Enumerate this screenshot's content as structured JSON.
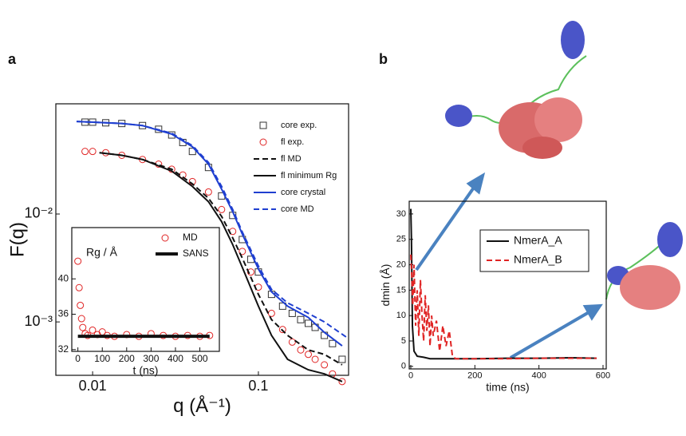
{
  "chart_data": [
    {
      "type": "scatter-line",
      "panel_label": "a",
      "xlabel": "q (Å⁻¹)",
      "ylabel": "F(q)",
      "xscale": "log",
      "yscale": "log",
      "xlim": [
        0.006,
        0.35
      ],
      "ylim": [
        0.00032,
        0.105
      ],
      "xticks": [
        0.01,
        0.1
      ],
      "yticks": [
        {
          "value": 0.01,
          "label": "10⁻²"
        },
        {
          "value": 0.001,
          "label": "10⁻³"
        }
      ],
      "legend": "upper right",
      "series": [
        {
          "name": "core exp.",
          "color": "#333333",
          "marker": "square",
          "dash": false,
          "x": [
            0.009,
            0.01,
            0.012,
            0.015,
            0.02,
            0.025,
            0.03,
            0.035,
            0.04,
            0.05,
            0.06,
            0.07,
            0.08,
            0.09,
            0.1,
            0.12,
            0.14,
            0.16,
            0.18,
            0.2,
            0.22,
            0.25,
            0.28,
            0.32
          ],
          "values": [
            0.071,
            0.071,
            0.07,
            0.069,
            0.066,
            0.061,
            0.054,
            0.046,
            0.038,
            0.027,
            0.0147,
            0.0097,
            0.0058,
            0.0038,
            0.0029,
            0.0018,
            0.0014,
            0.0012,
            0.00105,
            0.00097,
            0.00089,
            0.00075,
            0.00063,
            0.00045
          ]
        },
        {
          "name": "fl exp.",
          "color": "#e02424",
          "marker": "circle",
          "dash": false,
          "x": [
            0.009,
            0.01,
            0.012,
            0.015,
            0.02,
            0.025,
            0.03,
            0.035,
            0.04,
            0.05,
            0.06,
            0.07,
            0.08,
            0.09,
            0.1,
            0.12,
            0.14,
            0.16,
            0.18,
            0.2,
            0.22,
            0.25,
            0.28,
            0.32
          ],
          "values": [
            0.038,
            0.038,
            0.037,
            0.035,
            0.032,
            0.029,
            0.026,
            0.023,
            0.02,
            0.016,
            0.011,
            0.0069,
            0.0045,
            0.0029,
            0.0021,
            0.0012,
            0.00085,
            0.00065,
            0.00055,
            0.0005,
            0.00045,
            0.0004,
            0.00033,
            0.00028
          ]
        },
        {
          "name": "fl MD",
          "color": "#111111",
          "marker": "none",
          "dash": true,
          "x": [
            0.011,
            0.015,
            0.02,
            0.03,
            0.04,
            0.05,
            0.06,
            0.07,
            0.08,
            0.1,
            0.12,
            0.15,
            0.2,
            0.25,
            0.32
          ],
          "values": [
            0.037,
            0.035,
            0.032,
            0.026,
            0.019,
            0.014,
            0.0095,
            0.006,
            0.0039,
            0.0018,
            0.00105,
            0.00075,
            0.00055,
            0.0005,
            0.0004
          ]
        },
        {
          "name": "fl minimum Rg",
          "color": "#111111",
          "marker": "none",
          "dash": false,
          "x": [
            0.011,
            0.015,
            0.02,
            0.03,
            0.04,
            0.05,
            0.06,
            0.07,
            0.08,
            0.1,
            0.12,
            0.15,
            0.2,
            0.25,
            0.32
          ],
          "values": [
            0.037,
            0.035,
            0.032,
            0.025,
            0.018,
            0.013,
            0.0085,
            0.0052,
            0.0032,
            0.0014,
            0.00075,
            0.00045,
            0.00036,
            0.00033,
            0.00028
          ]
        },
        {
          "name": "core crystal",
          "color": "#1f3fd0",
          "marker": "none",
          "dash": false,
          "x": [
            0.008,
            0.01,
            0.015,
            0.02,
            0.03,
            0.04,
            0.05,
            0.06,
            0.07,
            0.08,
            0.1,
            0.12,
            0.15,
            0.2,
            0.25,
            0.32
          ],
          "values": [
            0.072,
            0.071,
            0.069,
            0.066,
            0.055,
            0.042,
            0.029,
            0.017,
            0.0105,
            0.0065,
            0.0031,
            0.0019,
            0.0014,
            0.0011,
            0.0008,
            0.0006
          ]
        },
        {
          "name": "core MD",
          "color": "#1f3fd0",
          "marker": "none",
          "dash": true,
          "x": [
            0.008,
            0.01,
            0.015,
            0.02,
            0.03,
            0.04,
            0.05,
            0.06,
            0.07,
            0.08,
            0.1,
            0.12,
            0.15,
            0.2,
            0.25,
            0.35
          ],
          "values": [
            0.072,
            0.071,
            0.069,
            0.066,
            0.056,
            0.043,
            0.03,
            0.018,
            0.011,
            0.0068,
            0.0033,
            0.002,
            0.0015,
            0.0012,
            0.001,
            0.0007
          ]
        }
      ]
    },
    {
      "type": "scatter-line",
      "xlabel": "t (ns)",
      "ylabel": "Rg / Å",
      "xscale": "linear",
      "yscale": "linear",
      "xlim": [
        -25,
        580
      ],
      "ylim": [
        31.8,
        45.8
      ],
      "xticks": [
        0,
        100,
        200,
        300,
        400,
        500
      ],
      "yticks": [
        32,
        36,
        40
      ],
      "legend": "upper right",
      "series": [
        {
          "name": "MD",
          "color": "#e02424",
          "marker": "circle",
          "dash": false,
          "x": [
            0,
            5,
            10,
            15,
            20,
            30,
            40,
            60,
            80,
            100,
            120,
            150,
            200,
            250,
            300,
            350,
            400,
            450,
            500,
            540
          ],
          "values": [
            42,
            39,
            37,
            35.5,
            34.5,
            33.8,
            33.6,
            34.2,
            33.7,
            34,
            33.6,
            33.5,
            33.7,
            33.5,
            33.8,
            33.6,
            33.5,
            33.6,
            33.5,
            33.6
          ]
        },
        {
          "name": "SANS",
          "color": "#111111",
          "marker": "thick",
          "dash": false,
          "x": [
            0,
            540
          ],
          "values": [
            33.5,
            33.5
          ]
        }
      ]
    },
    {
      "type": "line",
      "panel_label": "b",
      "xlabel": "time (ns)",
      "ylabel": "dmin (Å)",
      "xscale": "linear",
      "yscale": "linear",
      "xlim": [
        -5,
        610
      ],
      "ylim": [
        -0.5,
        32.5
      ],
      "xticks": [
        0,
        200,
        400,
        600
      ],
      "yticks": [
        0,
        5,
        10,
        15,
        20,
        25,
        30
      ],
      "legend": "upper right",
      "series": [
        {
          "name": "NmerA_A",
          "color": "#111111",
          "marker": "none",
          "dash": false,
          "x": [
            0,
            2,
            5,
            10,
            20,
            40,
            60,
            100,
            130,
            200,
            300,
            400,
            500,
            580
          ],
          "values": [
            31,
            25,
            8,
            3,
            2,
            1.8,
            1.5,
            1.5,
            1.5,
            1.5,
            1.6,
            1.6,
            1.7,
            1.6
          ]
        },
        {
          "name": "NmerA_B",
          "color": "#e02424",
          "marker": "none",
          "dash": true,
          "x": [
            0,
            3,
            6,
            10,
            15,
            20,
            25,
            30,
            35,
            40,
            45,
            50,
            55,
            60,
            65,
            70,
            80,
            90,
            100,
            110,
            120,
            130,
            140,
            200,
            300,
            400,
            500,
            580
          ],
          "values": [
            22,
            18,
            12,
            20,
            8,
            15,
            6,
            17,
            10,
            5,
            14,
            7,
            12,
            4,
            10,
            6,
            9,
            3,
            8,
            4,
            7,
            2,
            1.5,
            1.5,
            1.5,
            1.6,
            1.6,
            1.6
          ]
        }
      ]
    }
  ]
}
